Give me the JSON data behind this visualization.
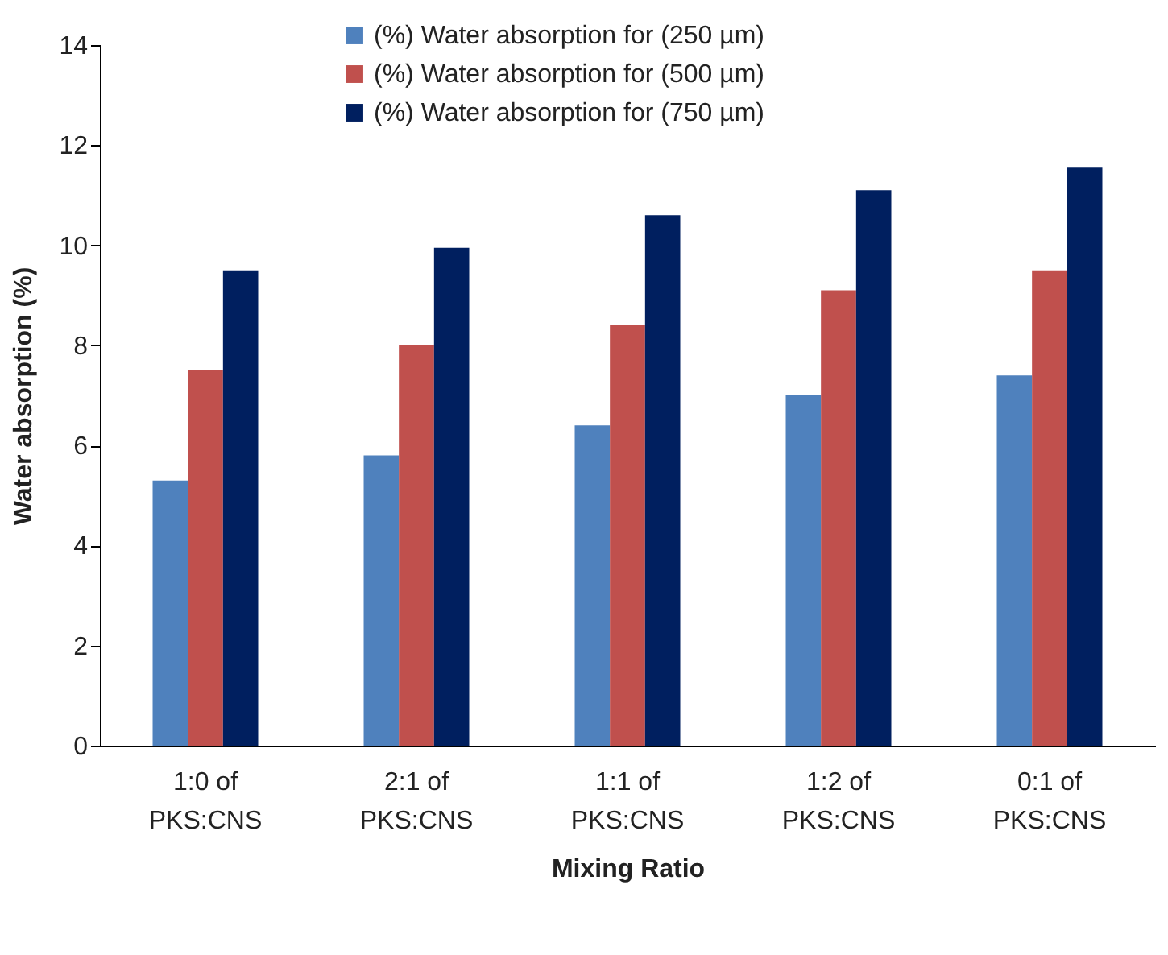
{
  "chart_data": {
    "type": "bar",
    "xlabel": "Mixing Ratio",
    "ylabel": "Water absorption (%)",
    "categories": [
      "1:0 of\nPKS:CNS",
      "2:1 of\nPKS:CNS",
      "1:1 of\nPKS:CNS",
      "1:2 of\nPKS:CNS",
      "0:1 of\nPKS:CNS"
    ],
    "series": [
      {
        "name": "(%) Water absorption for (250 µm)",
        "color": "#4f81bd",
        "values": [
          5.3,
          5.8,
          6.4,
          7.0,
          7.4
        ]
      },
      {
        "name": "(%) Water absorption for (500 µm)",
        "color": "#c0504d",
        "values": [
          7.5,
          8.0,
          8.4,
          9.1,
          9.5
        ]
      },
      {
        "name": "(%) Water absorption for (750 µm)",
        "color": "#001f5f",
        "values": [
          9.5,
          9.95,
          10.6,
          11.1,
          11.55
        ]
      }
    ],
    "ylim": [
      0,
      14
    ],
    "yticks": [
      0,
      2,
      4,
      6,
      8,
      10,
      12,
      14
    ],
    "grid": false,
    "legend": "top"
  }
}
